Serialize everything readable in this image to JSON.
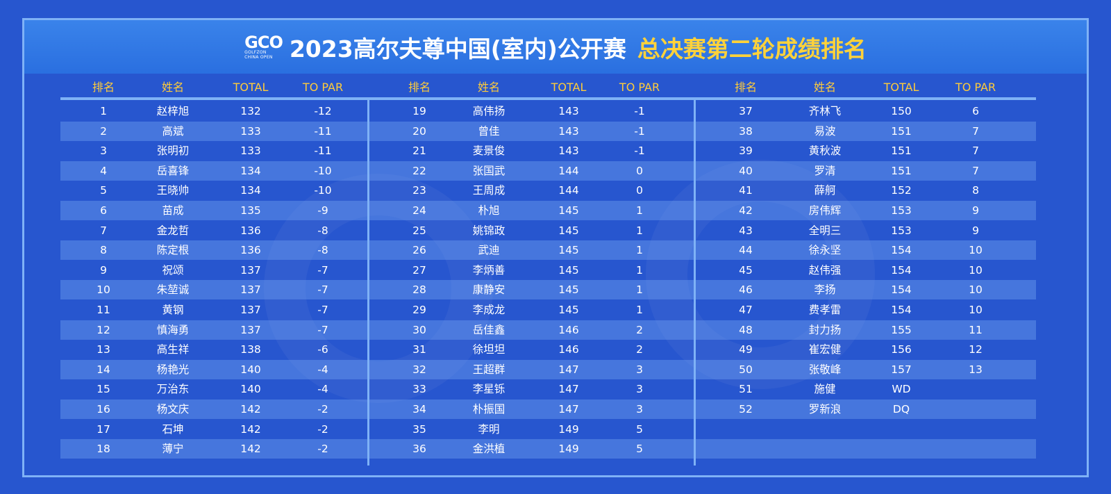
{
  "logo": {
    "text": "GCO",
    "subtitle_line1": "GOLFZON",
    "subtitle_line2": "CHINA OPEN"
  },
  "title": {
    "main": "2023高尔夫尊中国(室内)公开赛",
    "highlight": "总决赛第二轮成绩排名"
  },
  "columns": [
    "排名",
    "姓名",
    "TOTAL",
    "TO PAR"
  ],
  "colors": {
    "background": "#2756cf",
    "banner": "#3a83ea",
    "header_text": "#ffcc3a",
    "title_highlight": "#ffd23a",
    "frame": "#7fb2f6"
  },
  "panels": [
    {
      "rows": [
        [
          "1",
          "赵梓旭",
          "132",
          "-12"
        ],
        [
          "2",
          "高斌",
          "133",
          "-11"
        ],
        [
          "3",
          "张明初",
          "133",
          "-11"
        ],
        [
          "4",
          "岳喜锋",
          "134",
          "-10"
        ],
        [
          "5",
          "王晓帅",
          "134",
          "-10"
        ],
        [
          "6",
          "苗成",
          "135",
          "-9"
        ],
        [
          "7",
          "金龙哲",
          "136",
          "-8"
        ],
        [
          "8",
          "陈定根",
          "136",
          "-8"
        ],
        [
          "9",
          "祝颂",
          "137",
          "-7"
        ],
        [
          "10",
          "朱堃诚",
          "137",
          "-7"
        ],
        [
          "11",
          "黄钢",
          "137",
          "-7"
        ],
        [
          "12",
          "慎海勇",
          "137",
          "-7"
        ],
        [
          "13",
          "高生祥",
          "138",
          "-6"
        ],
        [
          "14",
          "杨艳光",
          "140",
          "-4"
        ],
        [
          "15",
          "万治东",
          "140",
          "-4"
        ],
        [
          "16",
          "杨文庆",
          "142",
          "-2"
        ],
        [
          "17",
          "石坤",
          "142",
          "-2"
        ],
        [
          "18",
          "薄宁",
          "142",
          "-2"
        ]
      ]
    },
    {
      "rows": [
        [
          "19",
          "高伟扬",
          "143",
          "-1"
        ],
        [
          "20",
          "曾佳",
          "143",
          "-1"
        ],
        [
          "21",
          "麦景俊",
          "143",
          "-1"
        ],
        [
          "22",
          "张国武",
          "144",
          "0"
        ],
        [
          "23",
          "王周成",
          "144",
          "0"
        ],
        [
          "24",
          "朴旭",
          "145",
          "1"
        ],
        [
          "25",
          "姚锦政",
          "145",
          "1"
        ],
        [
          "26",
          "武迪",
          "145",
          "1"
        ],
        [
          "27",
          "李炳善",
          "145",
          "1"
        ],
        [
          "28",
          "康静安",
          "145",
          "1"
        ],
        [
          "29",
          "李成龙",
          "145",
          "1"
        ],
        [
          "30",
          "岳佳鑫",
          "146",
          "2"
        ],
        [
          "31",
          "徐坦坦",
          "146",
          "2"
        ],
        [
          "32",
          "王超群",
          "147",
          "3"
        ],
        [
          "33",
          "李星铄",
          "147",
          "3"
        ],
        [
          "34",
          "朴振国",
          "147",
          "3"
        ],
        [
          "35",
          "李明",
          "149",
          "5"
        ],
        [
          "36",
          "金洪植",
          "149",
          "5"
        ]
      ]
    },
    {
      "rows": [
        [
          "37",
          "齐林飞",
          "150",
          "6"
        ],
        [
          "38",
          "易波",
          "151",
          "7"
        ],
        [
          "39",
          "黄秋波",
          "151",
          "7"
        ],
        [
          "40",
          "罗清",
          "151",
          "7"
        ],
        [
          "41",
          "薛舸",
          "152",
          "8"
        ],
        [
          "42",
          "房伟辉",
          "153",
          "9"
        ],
        [
          "43",
          "全明三",
          "153",
          "9"
        ],
        [
          "44",
          "徐永坚",
          "154",
          "10"
        ],
        [
          "45",
          "赵伟强",
          "154",
          "10"
        ],
        [
          "46",
          "李扬",
          "154",
          "10"
        ],
        [
          "47",
          "费孝雷",
          "154",
          "10"
        ],
        [
          "48",
          "封力扬",
          "155",
          "11"
        ],
        [
          "49",
          "崔宏健",
          "156",
          "12"
        ],
        [
          "50",
          "张敬峰",
          "157",
          "13"
        ],
        [
          "51",
          "施健",
          "WD",
          ""
        ],
        [
          "52",
          "罗新浪",
          "DQ",
          ""
        ],
        [
          "",
          "",
          "",
          ""
        ],
        [
          "",
          "",
          "",
          ""
        ]
      ]
    }
  ]
}
